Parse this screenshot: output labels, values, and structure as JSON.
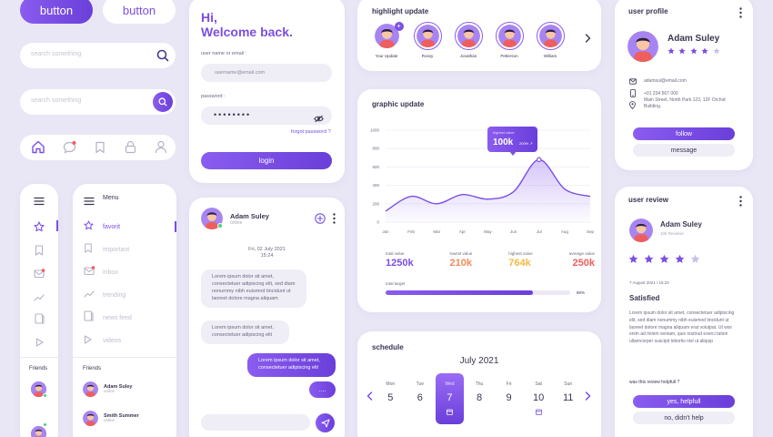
{
  "colors": {
    "accent": "#7a4fe3",
    "accent_light": "#a784f2",
    "bg": "#e9e6f5",
    "orange": "#f08a5a",
    "yellow": "#f3b942",
    "red": "#ef5e5e"
  },
  "buttons": {
    "filled": "button",
    "outline": "button"
  },
  "search": {
    "placeholder1": "search something",
    "placeholder2": "search something"
  },
  "icon_bar": [
    "home-icon",
    "chat-icon",
    "bookmark-icon",
    "lock-icon",
    "user-icon"
  ],
  "login": {
    "greeting": "Hi,",
    "welcome": "Welcome back.",
    "user_label": "user name or email :",
    "user_placeholder": "username@email.com",
    "password_label": "password :",
    "password_value": "••••••••",
    "forgot": "forgot password ?",
    "login_button": "login"
  },
  "highlight": {
    "title": "highlight update",
    "stories": [
      {
        "name": "Your Update"
      },
      {
        "name": "Rossy"
      },
      {
        "name": "Jonathan"
      },
      {
        "name": "Petterson"
      },
      {
        "name": "William"
      }
    ]
  },
  "graphic": {
    "title": "graphic update",
    "stats": [
      {
        "label": "total value",
        "value": "1250k"
      },
      {
        "label": "lowest value",
        "value": "210k"
      },
      {
        "label": "highest value",
        "value": "764k"
      },
      {
        "label": "average value",
        "value": "250k"
      }
    ],
    "target_label": "total target",
    "target_value": "80%",
    "target_fraction": 0.8,
    "tooltip_label": "highest value",
    "tooltip_value": "100k",
    "tooltip_pct": "200% ↗"
  },
  "chart_data": {
    "type": "area",
    "x": [
      "Jan",
      "Feb",
      "Mar",
      "Apr",
      "May",
      "Jun",
      "Jul",
      "Aug",
      "Sep"
    ],
    "y": [
      120,
      280,
      200,
      300,
      250,
      330,
      680,
      360,
      280
    ],
    "ylim": [
      0,
      1000
    ],
    "yticks": [
      "1000",
      "800",
      "600",
      "400",
      "200",
      "0"
    ],
    "grid": true
  },
  "sidebar": {
    "menu_label": "Menu",
    "items": [
      {
        "label": "favorit",
        "active": true
      },
      {
        "label": "important"
      },
      {
        "label": "inbox"
      },
      {
        "label": "trending"
      },
      {
        "label": "news feed"
      },
      {
        "label": "videos"
      }
    ],
    "friends_label": "Friends",
    "friends_label_small": "Friends",
    "friends": [
      {
        "name": "Adam Suley",
        "status": "online"
      },
      {
        "name": "Smith Summer",
        "status": "online"
      }
    ]
  },
  "chat": {
    "name": "Adam Suley",
    "status": "online",
    "date": "Fri, 02 July 2021",
    "time": "15:24",
    "msg1": "Lorem ipsum dolor sit amet, consectetuer adipiscing elit, sed diam nonummy nibh euismod tincidunt ut laoreet dolore magna aliquam",
    "msg2": "Lorem ipsum dolor sit amet, consectetuer adipiscing elit",
    "msg3": "Lorem ipsum dolor sit amet, consectetuer adipiscing elit",
    "msg4": "....",
    "input_placeholder": ""
  },
  "schedule": {
    "title": "schedule",
    "month": "July 2021",
    "days": [
      {
        "dow": "Mon",
        "num": "5"
      },
      {
        "dow": "Tue",
        "num": "6"
      },
      {
        "dow": "Wed",
        "num": "7",
        "active": true
      },
      {
        "dow": "Thu",
        "num": "8"
      },
      {
        "dow": "Fri",
        "num": "9"
      },
      {
        "dow": "Sat",
        "num": "10",
        "event": true
      },
      {
        "dow": "Sun",
        "num": "11"
      }
    ]
  },
  "profile": {
    "title": "user profile",
    "name": "Adam Suley",
    "stars": 4,
    "email": "adamsui@email.com",
    "phone": "+01 234 567 000",
    "address": "Main Street, North Park 123, 12F Orchid Building.",
    "follow": "follow",
    "message": "message"
  },
  "review": {
    "title": "user review",
    "name": "Adam Suley",
    "count": "105 Reviews",
    "stars": 4,
    "date": "7 August 2021 / 15:24",
    "heading": "Satisfied",
    "body": "Lorem ipsum dolor sit amet, consectetuer adipiscing elit, sed diam nonummy nibh euismod tincidunt ut laoreet dolore magna aliquam erat volutpat. Ut wisi enim ad minim veniam, quis nostrud exerci tation ullamcorper suscipit lobortis nisl ut aliquip",
    "question": "was this review helpfull ?",
    "yes": "yes, helpfull",
    "no": "no, didn't help"
  }
}
